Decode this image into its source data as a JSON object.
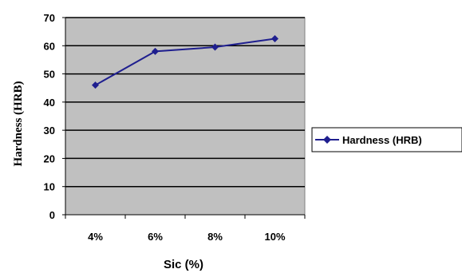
{
  "chart_data": {
    "type": "line",
    "categories": [
      "4%",
      "6%",
      "8%",
      "10%"
    ],
    "series": [
      {
        "name": "Hardness (HRB)",
        "values": [
          46,
          58,
          59.5,
          62.5
        ],
        "color": "#1f1f8f"
      }
    ],
    "xlabel": "Sic (%)",
    "ylabel": "Hardness (HRB)",
    "ylim": [
      0,
      70
    ],
    "yticks": [
      "0",
      "10",
      "20",
      "30",
      "40",
      "50",
      "60",
      "70"
    ],
    "grid": true,
    "plot_background": "#c0c0c0",
    "legend_position": "right"
  }
}
